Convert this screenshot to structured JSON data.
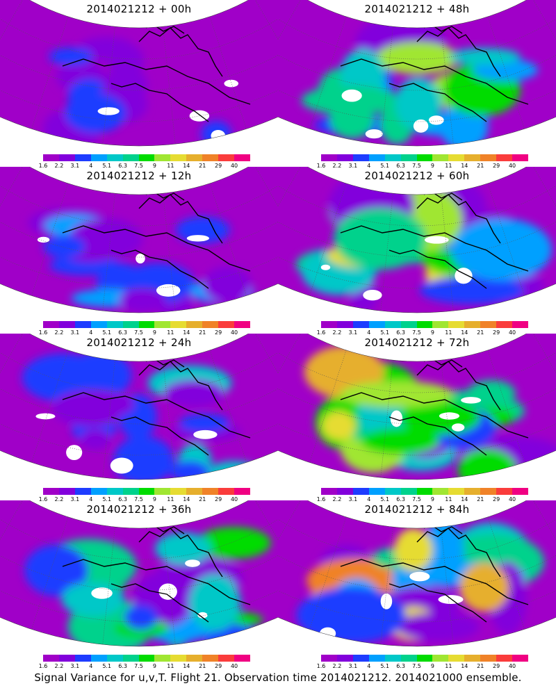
{
  "caption": "Signal Variance for u,v,T. Flight 21. Observation time 2014021212. 2014021000 ensemble.",
  "colorbar": {
    "labels": [
      "1.6",
      "2.2",
      "3.1",
      "4",
      "5.1",
      "6.3",
      "7.5",
      "9",
      "11",
      "14",
      "21",
      "29",
      "40"
    ],
    "colors": [
      "#a000c8",
      "#8200dc",
      "#1e3cff",
      "#00a0ff",
      "#00c8c8",
      "#00d28c",
      "#00dc00",
      "#a0e632",
      "#e6dc32",
      "#e6af2d",
      "#f08228",
      "#fa3c3c",
      "#f00082"
    ]
  },
  "panels": [
    {
      "title": "2014021212 + 00h",
      "intensity": 0.1
    },
    {
      "title": "2014021212 + 48h",
      "intensity": 0.6
    },
    {
      "title": "2014021212 + 12h",
      "intensity": 0.25
    },
    {
      "title": "2014021212 + 60h",
      "intensity": 0.7
    },
    {
      "title": "2014021212 + 24h",
      "intensity": 0.35
    },
    {
      "title": "2014021212 + 72h",
      "intensity": 0.8
    },
    {
      "title": "2014021212 + 36h",
      "intensity": 0.5
    },
    {
      "title": "2014021212 + 84h",
      "intensity": 0.85
    }
  ]
}
